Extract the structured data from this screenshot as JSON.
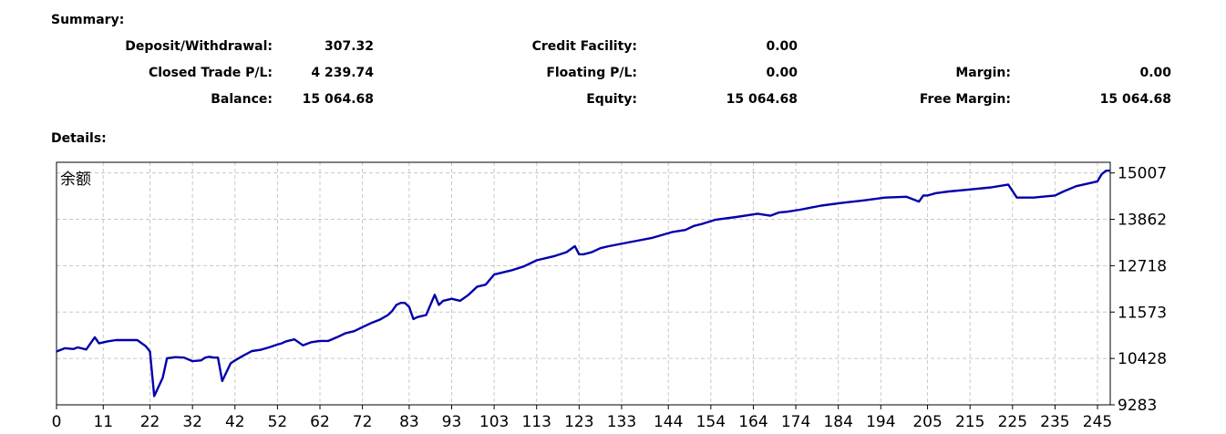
{
  "summary": {
    "heading": "Summary:",
    "deposit_withdrawal": {
      "label": "Deposit/Withdrawal:",
      "value": "307.32"
    },
    "credit_facility": {
      "label": "Credit Facility:",
      "value": "0.00"
    },
    "closed_trade_pl": {
      "label": "Closed Trade P/L:",
      "value": "4 239.74"
    },
    "floating_pl": {
      "label": "Floating P/L:",
      "value": "0.00"
    },
    "margin": {
      "label": "Margin:",
      "value": "0.00"
    },
    "balance": {
      "label": "Balance:",
      "value": "15 064.68"
    },
    "equity": {
      "label": "Equity:",
      "value": "15 064.68"
    },
    "free_margin": {
      "label": "Free Margin:",
      "value": "15 064.68"
    }
  },
  "details": {
    "heading": "Details:"
  },
  "chart_data": {
    "type": "line",
    "title": "余额",
    "series": [
      {
        "color": "#0000aa",
        "x": [
          0,
          2,
          4,
          5,
          7,
          9,
          10,
          12,
          14,
          16,
          18,
          19,
          21,
          22,
          23,
          25,
          26,
          28,
          30,
          32,
          34,
          35,
          36,
          37,
          38,
          39,
          41,
          42,
          44,
          46,
          48,
          50,
          52,
          53,
          54,
          56,
          58,
          60,
          62,
          64,
          66,
          68,
          70,
          72,
          74,
          76,
          78,
          79,
          80,
          81,
          82,
          83,
          84,
          85,
          87,
          89,
          90,
          91,
          93,
          95,
          97,
          99,
          101,
          103,
          107,
          110,
          113,
          117,
          120,
          122,
          123,
          124,
          126,
          128,
          130,
          135,
          140,
          145,
          148,
          150,
          152,
          155,
          160,
          165,
          168,
          170,
          172,
          175,
          180,
          185,
          190,
          195,
          200,
          203,
          204,
          205,
          207,
          210,
          215,
          220,
          224,
          226,
          230,
          235,
          237,
          240,
          243,
          245,
          246,
          247,
          248
        ],
        "y": [
          10600,
          10680,
          10660,
          10700,
          10650,
          10950,
          10800,
          10850,
          10880,
          10880,
          10880,
          10880,
          10730,
          10600,
          9500,
          9950,
          10430,
          10460,
          10450,
          10360,
          10380,
          10450,
          10470,
          10450,
          10450,
          9870,
          10310,
          10380,
          10500,
          10610,
          10640,
          10700,
          10770,
          10800,
          10850,
          10900,
          10750,
          10830,
          10860,
          10860,
          10950,
          11050,
          11100,
          11200,
          11300,
          11380,
          11500,
          11600,
          11750,
          11800,
          11800,
          11700,
          11400,
          11450,
          11500,
          12000,
          11750,
          11850,
          11900,
          11850,
          12000,
          12200,
          12250,
          12500,
          12600,
          12700,
          12850,
          12950,
          13050,
          13200,
          13000,
          13000,
          13050,
          13150,
          13200,
          13300,
          13400,
          13550,
          13600,
          13700,
          13750,
          13850,
          13920,
          14000,
          13950,
          14030,
          14050,
          14100,
          14200,
          14270,
          14330,
          14400,
          14420,
          14300,
          14450,
          14450,
          14510,
          14550,
          14600,
          14650,
          14720,
          14400,
          14400,
          14450,
          14550,
          14680,
          14750,
          14800,
          14980,
          15060,
          15065
        ]
      }
    ],
    "x_ticks": [
      0,
      11,
      22,
      32,
      42,
      52,
      62,
      72,
      83,
      93,
      103,
      113,
      123,
      133,
      144,
      154,
      164,
      174,
      184,
      194,
      205,
      215,
      225,
      235,
      245
    ],
    "y_ticks": [
      9283,
      10428,
      11573,
      12718,
      13862,
      15007
    ],
    "xlim": [
      0,
      248
    ],
    "ylim": [
      9283,
      15270
    ],
    "grid": true,
    "y_axis_side": "right"
  }
}
